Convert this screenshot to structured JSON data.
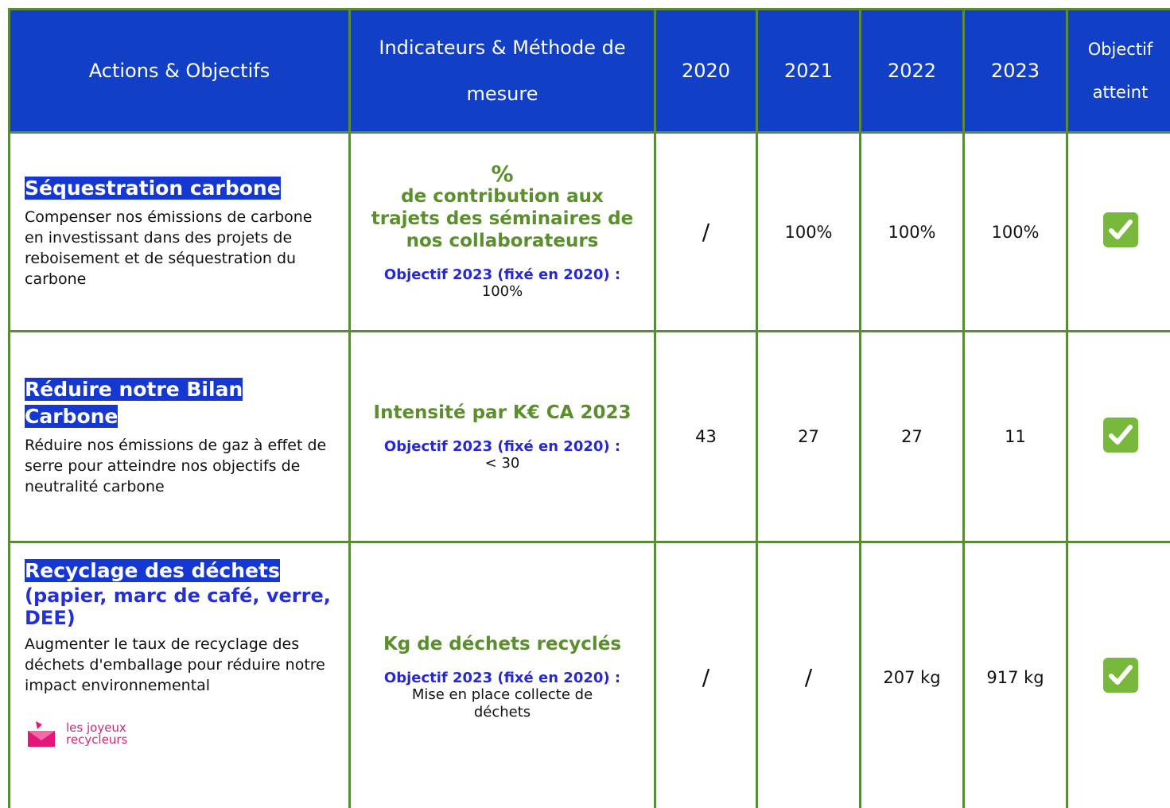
{
  "header": [
    "Actions & Objectifs",
    "Indicateurs & Méthode de mesure",
    "2020",
    "2021",
    "2022",
    "2023",
    "Objectif atteint"
  ],
  "rows": [
    {
      "title": "Séquestration carbone",
      "description": "Compenser nos émissions de carbone en investissant dans des projets de reboisement et de séquestration du carbone",
      "indicator": [
        "%",
        "de contribution aux trajets des séminaires de nos collaborateurs"
      ],
      "objective_label": "Objectif 2023 (fixé en 2020) :",
      "objective_value": "100%",
      "values": [
        "/",
        "100%",
        "100%",
        "100%"
      ]
    },
    {
      "title": "Réduire notre Bilan Carbone",
      "description": "Réduire nos émissions de gaz à effet de serre pour atteindre nos objectifs de neutralité carbone",
      "indicator": [
        "Intensité par K€ CA 2023"
      ],
      "objective_label": "Objectif 2023 (fixé en 2020) :",
      "objective_value": "< 30",
      "values": [
        "43",
        "27",
        "27",
        "11"
      ]
    },
    {
      "title": "Recyclage des déchets",
      "subtitle": "(papier, marc de café, verre, DEE)",
      "description": "Augmenter le taux de recyclage des déchets d'emballage pour réduire notre impact environnemental",
      "logo": [
        "les joyeux",
        "recycleurs"
      ],
      "indicator": [
        "Kg de déchets recyclés"
      ],
      "objective_label": "Objectif 2023 (fixé en 2020) :",
      "objective_value": "Mise en place collecte de déchets",
      "values": [
        "/",
        "/",
        "207 kg",
        "917 kg"
      ]
    }
  ]
}
